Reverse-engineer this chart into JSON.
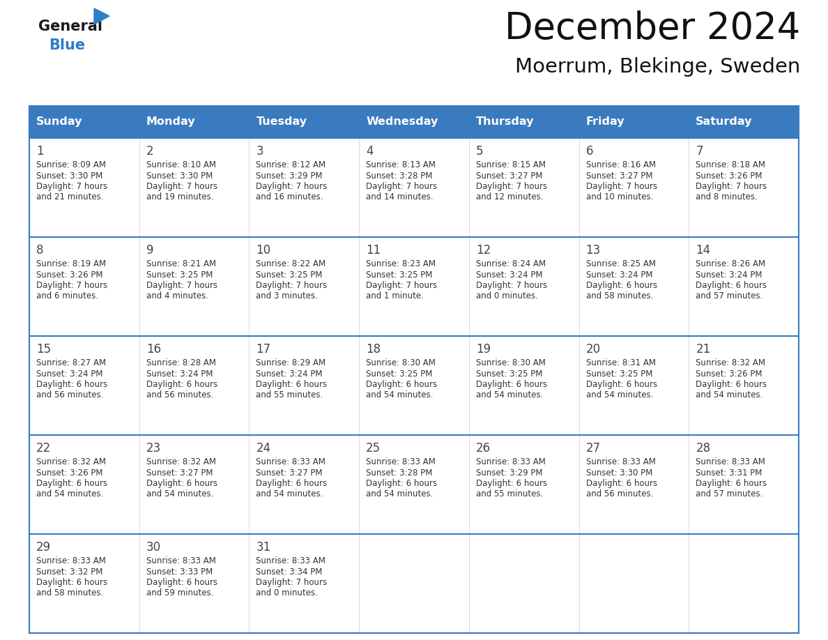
{
  "title": "December 2024",
  "subtitle": "Moerrum, Blekinge, Sweden",
  "header_color": "#3a7bbf",
  "header_text_color": "#ffffff",
  "cell_bg_color": "#ffffff",
  "row_sep_color": "#3a7bbf",
  "day_headers": [
    "Sunday",
    "Monday",
    "Tuesday",
    "Wednesday",
    "Thursday",
    "Friday",
    "Saturday"
  ],
  "calendar_data": [
    [
      {
        "day": "1",
        "sunrise": "8:09 AM",
        "sunset": "3:30 PM",
        "daylight_line1": "Daylight: 7 hours",
        "daylight_line2": "and 21 minutes."
      },
      {
        "day": "2",
        "sunrise": "8:10 AM",
        "sunset": "3:30 PM",
        "daylight_line1": "Daylight: 7 hours",
        "daylight_line2": "and 19 minutes."
      },
      {
        "day": "3",
        "sunrise": "8:12 AM",
        "sunset": "3:29 PM",
        "daylight_line1": "Daylight: 7 hours",
        "daylight_line2": "and 16 minutes."
      },
      {
        "day": "4",
        "sunrise": "8:13 AM",
        "sunset": "3:28 PM",
        "daylight_line1": "Daylight: 7 hours",
        "daylight_line2": "and 14 minutes."
      },
      {
        "day": "5",
        "sunrise": "8:15 AM",
        "sunset": "3:27 PM",
        "daylight_line1": "Daylight: 7 hours",
        "daylight_line2": "and 12 minutes."
      },
      {
        "day": "6",
        "sunrise": "8:16 AM",
        "sunset": "3:27 PM",
        "daylight_line1": "Daylight: 7 hours",
        "daylight_line2": "and 10 minutes."
      },
      {
        "day": "7",
        "sunrise": "8:18 AM",
        "sunset": "3:26 PM",
        "daylight_line1": "Daylight: 7 hours",
        "daylight_line2": "and 8 minutes."
      }
    ],
    [
      {
        "day": "8",
        "sunrise": "8:19 AM",
        "sunset": "3:26 PM",
        "daylight_line1": "Daylight: 7 hours",
        "daylight_line2": "and 6 minutes."
      },
      {
        "day": "9",
        "sunrise": "8:21 AM",
        "sunset": "3:25 PM",
        "daylight_line1": "Daylight: 7 hours",
        "daylight_line2": "and 4 minutes."
      },
      {
        "day": "10",
        "sunrise": "8:22 AM",
        "sunset": "3:25 PM",
        "daylight_line1": "Daylight: 7 hours",
        "daylight_line2": "and 3 minutes."
      },
      {
        "day": "11",
        "sunrise": "8:23 AM",
        "sunset": "3:25 PM",
        "daylight_line1": "Daylight: 7 hours",
        "daylight_line2": "and 1 minute."
      },
      {
        "day": "12",
        "sunrise": "8:24 AM",
        "sunset": "3:24 PM",
        "daylight_line1": "Daylight: 7 hours",
        "daylight_line2": "and 0 minutes."
      },
      {
        "day": "13",
        "sunrise": "8:25 AM",
        "sunset": "3:24 PM",
        "daylight_line1": "Daylight: 6 hours",
        "daylight_line2": "and 58 minutes."
      },
      {
        "day": "14",
        "sunrise": "8:26 AM",
        "sunset": "3:24 PM",
        "daylight_line1": "Daylight: 6 hours",
        "daylight_line2": "and 57 minutes."
      }
    ],
    [
      {
        "day": "15",
        "sunrise": "8:27 AM",
        "sunset": "3:24 PM",
        "daylight_line1": "Daylight: 6 hours",
        "daylight_line2": "and 56 minutes."
      },
      {
        "day": "16",
        "sunrise": "8:28 AM",
        "sunset": "3:24 PM",
        "daylight_line1": "Daylight: 6 hours",
        "daylight_line2": "and 56 minutes."
      },
      {
        "day": "17",
        "sunrise": "8:29 AM",
        "sunset": "3:24 PM",
        "daylight_line1": "Daylight: 6 hours",
        "daylight_line2": "and 55 minutes."
      },
      {
        "day": "18",
        "sunrise": "8:30 AM",
        "sunset": "3:25 PM",
        "daylight_line1": "Daylight: 6 hours",
        "daylight_line2": "and 54 minutes."
      },
      {
        "day": "19",
        "sunrise": "8:30 AM",
        "sunset": "3:25 PM",
        "daylight_line1": "Daylight: 6 hours",
        "daylight_line2": "and 54 minutes."
      },
      {
        "day": "20",
        "sunrise": "8:31 AM",
        "sunset": "3:25 PM",
        "daylight_line1": "Daylight: 6 hours",
        "daylight_line2": "and 54 minutes."
      },
      {
        "day": "21",
        "sunrise": "8:32 AM",
        "sunset": "3:26 PM",
        "daylight_line1": "Daylight: 6 hours",
        "daylight_line2": "and 54 minutes."
      }
    ],
    [
      {
        "day": "22",
        "sunrise": "8:32 AM",
        "sunset": "3:26 PM",
        "daylight_line1": "Daylight: 6 hours",
        "daylight_line2": "and 54 minutes."
      },
      {
        "day": "23",
        "sunrise": "8:32 AM",
        "sunset": "3:27 PM",
        "daylight_line1": "Daylight: 6 hours",
        "daylight_line2": "and 54 minutes."
      },
      {
        "day": "24",
        "sunrise": "8:33 AM",
        "sunset": "3:27 PM",
        "daylight_line1": "Daylight: 6 hours",
        "daylight_line2": "and 54 minutes."
      },
      {
        "day": "25",
        "sunrise": "8:33 AM",
        "sunset": "3:28 PM",
        "daylight_line1": "Daylight: 6 hours",
        "daylight_line2": "and 54 minutes."
      },
      {
        "day": "26",
        "sunrise": "8:33 AM",
        "sunset": "3:29 PM",
        "daylight_line1": "Daylight: 6 hours",
        "daylight_line2": "and 55 minutes."
      },
      {
        "day": "27",
        "sunrise": "8:33 AM",
        "sunset": "3:30 PM",
        "daylight_line1": "Daylight: 6 hours",
        "daylight_line2": "and 56 minutes."
      },
      {
        "day": "28",
        "sunrise": "8:33 AM",
        "sunset": "3:31 PM",
        "daylight_line1": "Daylight: 6 hours",
        "daylight_line2": "and 57 minutes."
      }
    ],
    [
      {
        "day": "29",
        "sunrise": "8:33 AM",
        "sunset": "3:32 PM",
        "daylight_line1": "Daylight: 6 hours",
        "daylight_line2": "and 58 minutes."
      },
      {
        "day": "30",
        "sunrise": "8:33 AM",
        "sunset": "3:33 PM",
        "daylight_line1": "Daylight: 6 hours",
        "daylight_line2": "and 59 minutes."
      },
      {
        "day": "31",
        "sunrise": "8:33 AM",
        "sunset": "3:34 PM",
        "daylight_line1": "Daylight: 7 hours",
        "daylight_line2": "and 0 minutes."
      },
      null,
      null,
      null,
      null
    ]
  ],
  "logo_color_general": "#1a1a1a",
  "logo_color_blue": "#2a7fc9",
  "logo_triangle_color": "#2a7fc9",
  "text_color": "#333333",
  "day_number_color": "#444444",
  "figsize": [
    11.88,
    9.18
  ],
  "dpi": 100
}
